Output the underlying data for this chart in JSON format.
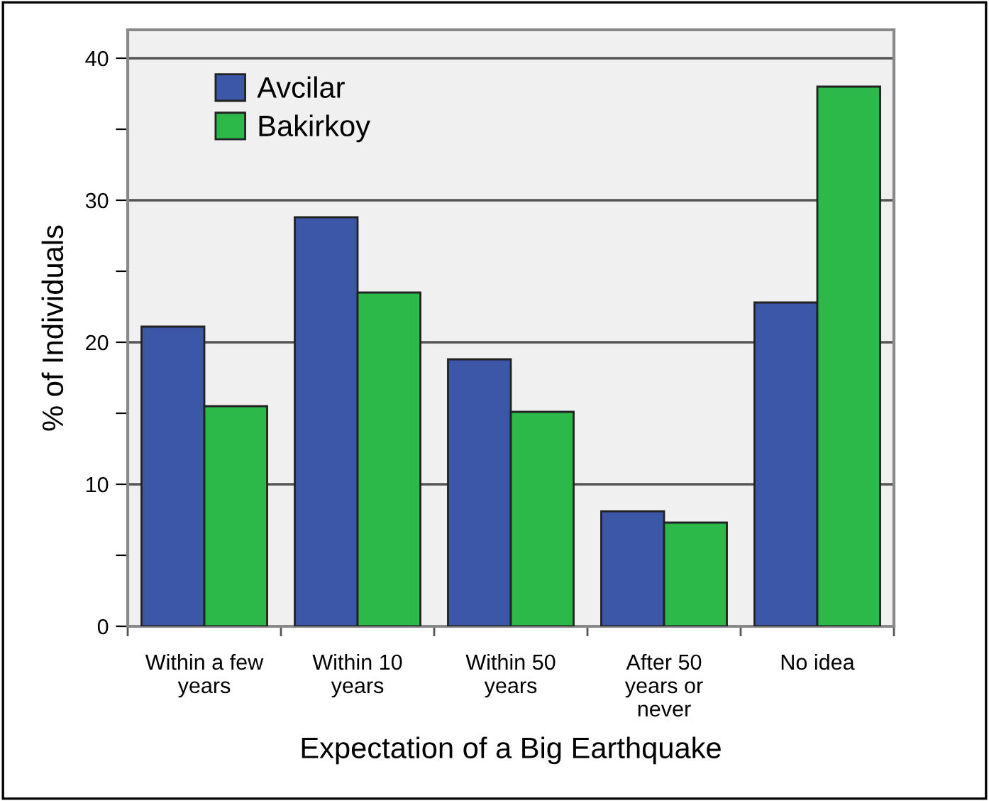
{
  "chart_data": {
    "type": "bar",
    "xlabel": "Expectation of a Big Earthquake",
    "ylabel": "% of Individuals",
    "categories": [
      "Within a few\nyears",
      "Within 10\nyears",
      "Within 50\nyears",
      "After 50\nyears or\nnever",
      "No idea"
    ],
    "series": [
      {
        "name": "Avcilar",
        "color": "#3d57a8",
        "values": [
          21.1,
          28.8,
          18.8,
          8.1,
          22.8
        ]
      },
      {
        "name": "Bakirkoy",
        "color": "#2db84a",
        "values": [
          15.5,
          23.5,
          15.1,
          7.3,
          38.0
        ]
      }
    ],
    "ylim": [
      0,
      42
    ],
    "yticks": [
      0,
      {
        "value": 5,
        "label": null
      },
      10,
      {
        "value": 15,
        "label": null
      },
      20,
      {
        "value": 25,
        "label": null
      },
      30,
      {
        "value": 35,
        "label": null
      },
      40
    ],
    "grid": "y",
    "legend": "top left"
  }
}
